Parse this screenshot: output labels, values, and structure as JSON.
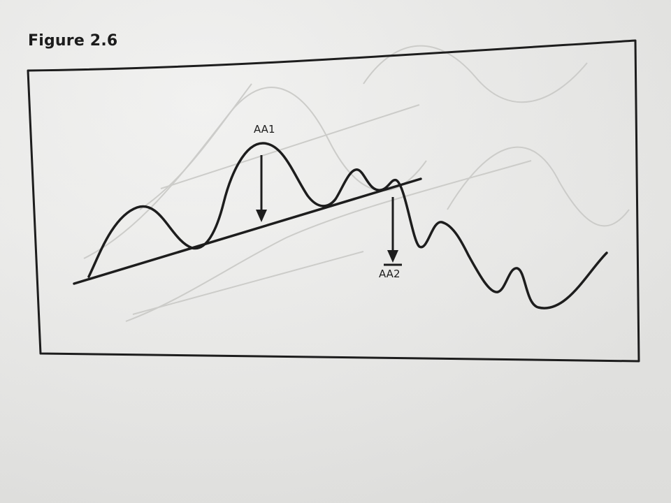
{
  "figure": {
    "title": "Figure 2.6"
  },
  "diagram": {
    "labels": {
      "aa1": "AA1",
      "aa2": "AA2"
    },
    "colors": {
      "ink": "#1d1d1d",
      "paper": "#ebebe9",
      "bleed_through": "#c9c9c6"
    },
    "elements": [
      "price-curve",
      "trendline",
      "arrow-aa1",
      "arrow-aa2",
      "frame"
    ]
  }
}
